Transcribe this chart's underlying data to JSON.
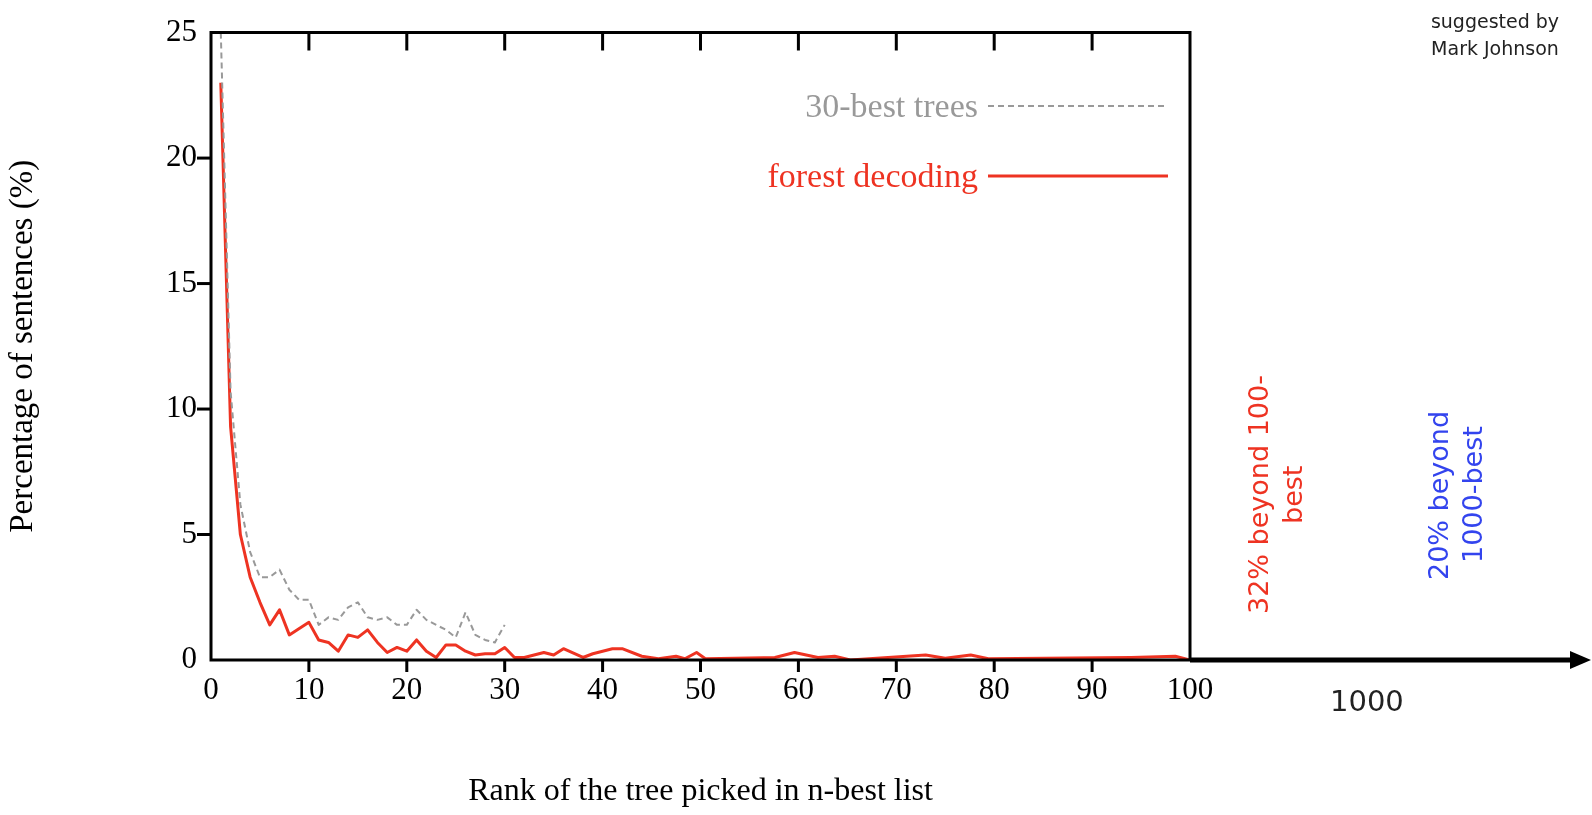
{
  "chart_data": {
    "type": "line",
    "xlabel": "Rank of the tree picked in n-best list",
    "ylabel": "Percentage of sentences (%)",
    "xlim": [
      0,
      100
    ],
    "xticks": [
      0,
      10,
      20,
      30,
      40,
      50,
      60,
      70,
      80,
      90,
      100
    ],
    "ylim": [
      0,
      25
    ],
    "yticks": [
      0,
      5,
      10,
      15,
      20,
      25
    ],
    "grid": false,
    "legend": "top right",
    "marker": "none",
    "annotations": [
      "suggested by Mark Johnson",
      "32% beyond 100-best",
      "20% beyond 1000-best",
      "1000"
    ],
    "series": [
      {
        "name": "30-best trees",
        "color": "#999999",
        "line_style": "dashed",
        "x": [
          1,
          2,
          3,
          4,
          5,
          6,
          7,
          8,
          9,
          10,
          11,
          12,
          13,
          14,
          15,
          16,
          17,
          18,
          19,
          20,
          21,
          22,
          23,
          24,
          25,
          26,
          27,
          28,
          29,
          30
        ],
        "values": [
          25,
          10.7,
          6.2,
          4.3,
          3.3,
          3.3,
          3.6,
          2.8,
          2.4,
          2.4,
          1.4,
          1.7,
          1.6,
          2.1,
          2.3,
          1.7,
          1.6,
          1.7,
          1.4,
          1.4,
          2.0,
          1.6,
          1.4,
          1.2,
          0.9,
          1.9,
          1.0,
          0.8,
          0.7,
          1.4
        ]
      },
      {
        "name": "forest decoding",
        "color": "#ee3322",
        "line_style": "solid",
        "x": [
          1,
          2,
          3,
          4,
          5,
          6,
          7,
          8,
          10,
          11,
          12,
          13,
          14,
          15,
          16,
          17,
          18,
          19,
          20,
          21,
          22,
          23,
          24,
          25,
          26,
          27,
          28,
          29,
          30,
          31,
          32,
          33,
          34,
          35,
          36,
          38,
          39,
          41,
          42,
          44,
          45.7,
          47.5,
          48.4,
          49.6,
          50.5,
          57.6,
          59.6,
          62,
          63.7,
          65.3,
          73,
          75,
          77.6,
          79.4,
          94,
          98.5,
          100
        ],
        "values": [
          23.0,
          9.3,
          5.0,
          3.3,
          2.3,
          1.4,
          2.0,
          1.0,
          1.5,
          0.8,
          0.7,
          0.35,
          1.0,
          0.9,
          1.2,
          0.7,
          0.3,
          0.5,
          0.35,
          0.8,
          0.35,
          0.1,
          0.6,
          0.6,
          0.35,
          0.2,
          0.25,
          0.25,
          0.5,
          0.1,
          0.1,
          0.2,
          0.3,
          0.2,
          0.45,
          0.1,
          0.25,
          0.45,
          0.45,
          0.15,
          0.05,
          0.15,
          0.05,
          0.3,
          0.05,
          0.1,
          0.3,
          0.1,
          0.15,
          0,
          0.2,
          0.07,
          0.2,
          0.05,
          0.1,
          0.15,
          0
        ]
      }
    ]
  }
}
